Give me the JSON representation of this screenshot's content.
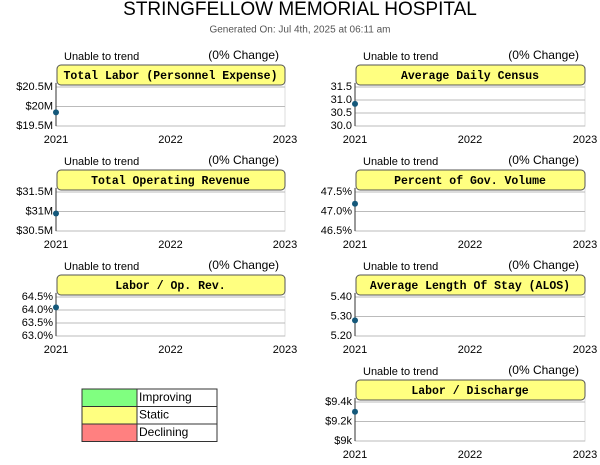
{
  "title": "STRINGFELLOW MEMORIAL HOSPITAL",
  "subtitle": "Generated On: Jul 4th, 2025 at 06:11 am",
  "chart_data": [
    {
      "type": "line",
      "title": "Total Labor (Personnel Expense)",
      "trend_note": "Unable to trend",
      "change_note": "(0% Change)",
      "categories": [
        "2021",
        "2022",
        "2023"
      ],
      "series": [
        {
          "color": "#14587a",
          "values": [
            19850000,
            null,
            null
          ]
        }
      ],
      "ylim": [
        19500000,
        20500000
      ],
      "yticks": [
        {
          "value": 19500000,
          "label": "$19.5M"
        },
        {
          "value": 20000000,
          "label": "$20M"
        },
        {
          "value": 20500000,
          "label": "$20.5M"
        }
      ],
      "grid": true
    },
    {
      "type": "line",
      "title": "Average Daily Census",
      "trend_note": "Unable to trend",
      "change_note": "(0% Change)",
      "categories": [
        "2021",
        "2022",
        "2023"
      ],
      "series": [
        {
          "color": "#14587a",
          "values": [
            30.85,
            null,
            null
          ]
        }
      ],
      "ylim": [
        30,
        31.5
      ],
      "yticks": [
        {
          "value": 30,
          "label": "30.0"
        },
        30.5,
        {
          "value": 31,
          "label": "31.0"
        },
        31.5
      ],
      "grid": true
    },
    {
      "type": "line",
      "title": "Total Operating Revenue",
      "trend_note": "Unable to trend",
      "change_note": "(0% Change)",
      "categories": [
        "2021",
        "2022",
        "2023"
      ],
      "series": [
        {
          "color": "#14587a",
          "values": [
            30950000,
            null,
            null
          ]
        }
      ],
      "ylim": [
        30500000,
        31500000
      ],
      "yticks": [
        {
          "value": 30500000,
          "label": "$30.5M"
        },
        {
          "value": 31000000,
          "label": "$31M"
        },
        {
          "value": 31500000,
          "label": "$31.5M"
        }
      ],
      "grid": true
    },
    {
      "type": "line",
      "title": "Percent of Gov. Volume",
      "trend_note": "Unable to trend",
      "change_note": "(0% Change)",
      "categories": [
        "2021",
        "2022",
        "2023"
      ],
      "series": [
        {
          "color": "#14587a",
          "values": [
            47.2,
            null,
            null
          ]
        }
      ],
      "ylim": [
        46.5,
        47.5
      ],
      "yticks": [
        {
          "value": 46.5,
          "label": "46.5%"
        },
        {
          "value": 47,
          "label": "47.0%"
        },
        {
          "value": 47.5,
          "label": "47.5%"
        }
      ],
      "grid": true
    },
    {
      "type": "line",
      "title": "Labor / Op. Rev.",
      "trend_note": "Unable to trend",
      "change_note": "(0% Change)",
      "categories": [
        "2021",
        "2022",
        "2023"
      ],
      "series": [
        {
          "color": "#14587a",
          "values": [
            64.1,
            null,
            null
          ]
        }
      ],
      "ylim": [
        63,
        64.5
      ],
      "yticks": [
        {
          "value": 63,
          "label": "63.0%"
        },
        {
          "value": 63.5,
          "label": "63.5%"
        },
        {
          "value": 64,
          "label": "64.0%"
        },
        {
          "value": 64.5,
          "label": "64.5%"
        }
      ],
      "grid": true
    },
    {
      "type": "line",
      "title": "Average Length Of Stay (ALOS)",
      "trend_note": "Unable to trend",
      "change_note": "(0% Change)",
      "categories": [
        "2021",
        "2022",
        "2023"
      ],
      "series": [
        {
          "color": "#14587a",
          "values": [
            5.28,
            null,
            null
          ]
        }
      ],
      "ylim": [
        5.2,
        5.4
      ],
      "yticks": [
        {
          "value": 5.2,
          "label": "5.20"
        },
        {
          "value": 5.3,
          "label": "5.30"
        },
        {
          "value": 5.4,
          "label": "5.40"
        }
      ],
      "grid": true
    },
    {
      "type": "line",
      "title": "Labor / Discharge",
      "trend_note": "Unable to trend",
      "change_note": "(0% Change)",
      "categories": [
        "2021",
        "2022",
        "2023"
      ],
      "series": [
        {
          "color": "#14587a",
          "values": [
            9300,
            null,
            null
          ]
        }
      ],
      "ylim": [
        9000,
        9400
      ],
      "yticks": [
        {
          "value": 9000,
          "label": "$9k"
        },
        {
          "value": 9200,
          "label": "$9.2k"
        },
        {
          "value": 9400,
          "label": "$9.4k"
        }
      ],
      "grid": true
    }
  ],
  "legend": [
    {
      "label": "Improving",
      "color": "#80ff80"
    },
    {
      "label": "Static",
      "color": "#ffff80"
    },
    {
      "label": "Declining",
      "color": "#ff8080"
    }
  ]
}
